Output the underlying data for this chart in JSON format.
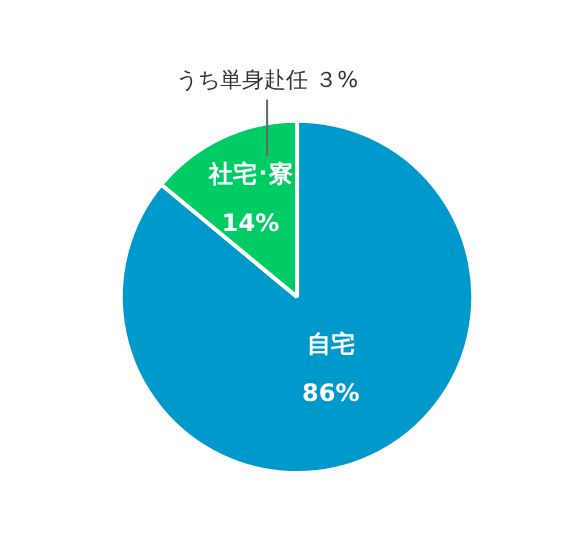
{
  "chart_data": {
    "type": "pie",
    "categories": [
      "自宅",
      "社宅･寮"
    ],
    "values": [
      86,
      14
    ],
    "colors": [
      "#0099cc",
      "#00cc66"
    ],
    "value_labels": [
      "86%",
      "14%"
    ],
    "annotations": [
      "うち単身赴任 ３%"
    ]
  }
}
